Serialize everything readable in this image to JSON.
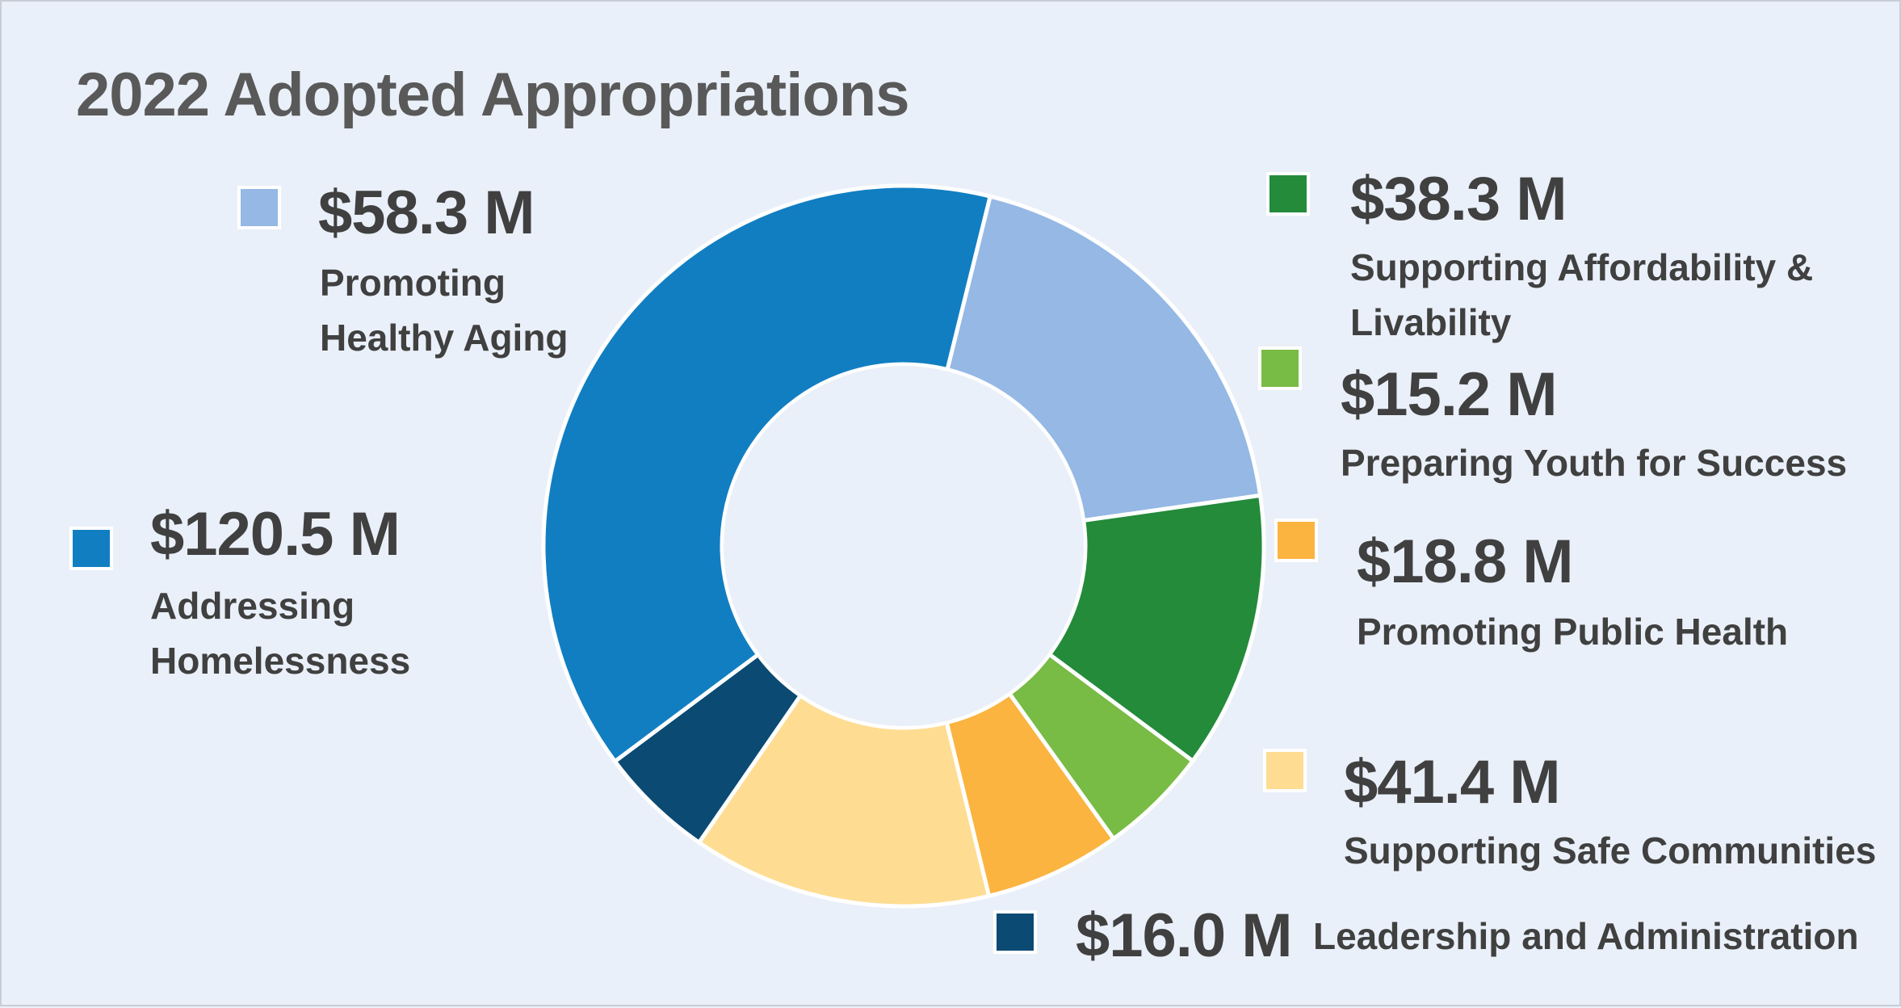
{
  "chart_data": {
    "type": "pie",
    "donut": true,
    "title": "2022 Adopted Appropriations",
    "units": "$ M",
    "slices": [
      {
        "amount": "$58.3 M",
        "value": 58.3,
        "label_lines": [
          "Promoting",
          "Healthy Aging"
        ],
        "color": "#95b8e5"
      },
      {
        "amount": "$38.3 M",
        "value": 38.3,
        "label_lines": [
          "Supporting Affordability &",
          "Livability"
        ],
        "color": "#238b3a"
      },
      {
        "amount": "$15.2 M",
        "value": 15.2,
        "label_lines": [
          "Preparing Youth for Success"
        ],
        "color": "#78bb45"
      },
      {
        "amount": "$18.8 M",
        "value": 18.8,
        "label_lines": [
          "Promoting Public Health"
        ],
        "color": "#fbb440"
      },
      {
        "amount": "$41.4 M",
        "value": 41.4,
        "label_lines": [
          "Supporting Safe Communities"
        ],
        "color": "#fedd92"
      },
      {
        "amount": "$16.0 M",
        "value": 16.0,
        "label_lines": [
          "Leadership and Administration"
        ],
        "color": "#0a4a73"
      },
      {
        "amount": "$120.5 M",
        "value": 120.5,
        "label_lines": [
          "Addressing",
          "Homelessness"
        ],
        "color": "#117ec2"
      }
    ],
    "start_angle_deg": 13.9,
    "background": "#eaf0f9"
  }
}
